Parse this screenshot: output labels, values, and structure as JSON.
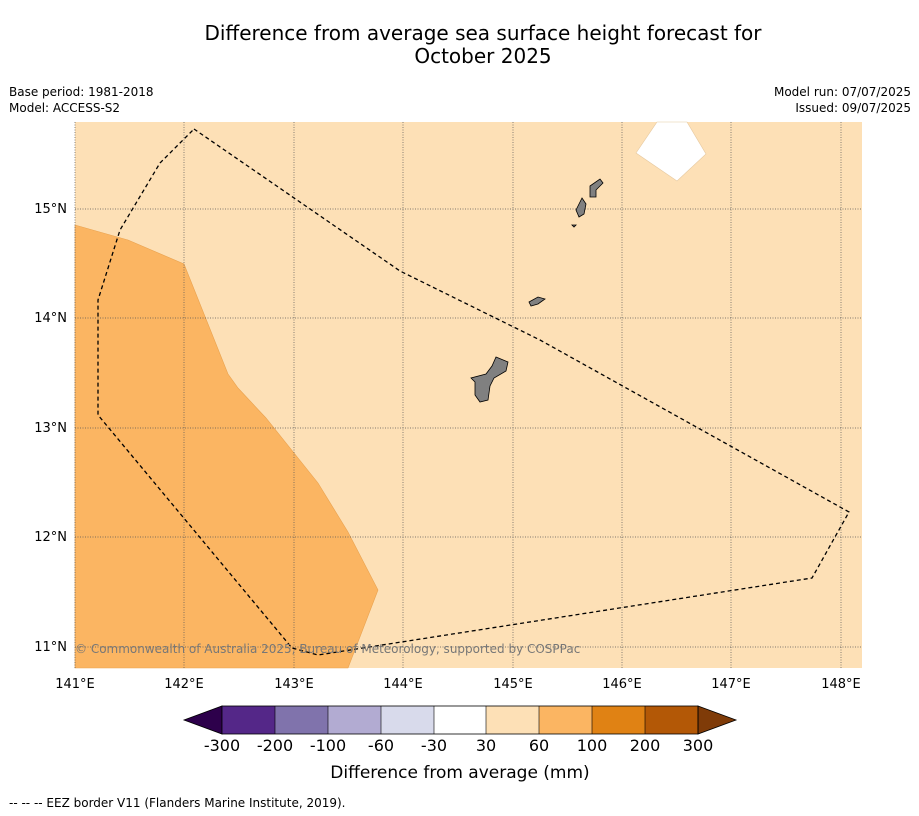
{
  "title_line1": "Difference from average sea surface height forecast for",
  "title_line2": "October 2025",
  "meta_left": {
    "base_period": "Base period: 1981-2018",
    "model": "Model: ACCESS-S2"
  },
  "meta_right": {
    "model_run": "Model run: 07/07/2025",
    "issued": "Issued: 09/07/2025"
  },
  "map": {
    "lon_labels": [
      "141°E",
      "142°E",
      "143°E",
      "144°E",
      "145°E",
      "146°E",
      "147°E",
      "148°E"
    ],
    "lat_labels": [
      "15°N",
      "14°N",
      "13°N",
      "12°N",
      "11°N"
    ],
    "copyright": "© Commonwealth of Australia 2025, Bureau of Meteorology, supported by COSPPac",
    "colors": {
      "ocean_30_60": "#fde0b6",
      "ocean_60_100": "#fbb562",
      "land": "#808080",
      "eez_line": "#000000"
    }
  },
  "colorbar": {
    "title": "Difference from average (mm)",
    "tick_labels": [
      "-300",
      "-200",
      "-100",
      "-60",
      "-30",
      "30",
      "60",
      "100",
      "200",
      "300"
    ],
    "colors": [
      "#2d004b",
      "#542788",
      "#8073ac",
      "#b2abd2",
      "#d8daeb",
      "#ffffff",
      "#fde0b6",
      "#fbb562",
      "#e08214",
      "#b35806",
      "#7f3b08"
    ]
  },
  "footer": "--  --  -- EEZ border V11 (Flanders Marine Institute, 2019)."
}
